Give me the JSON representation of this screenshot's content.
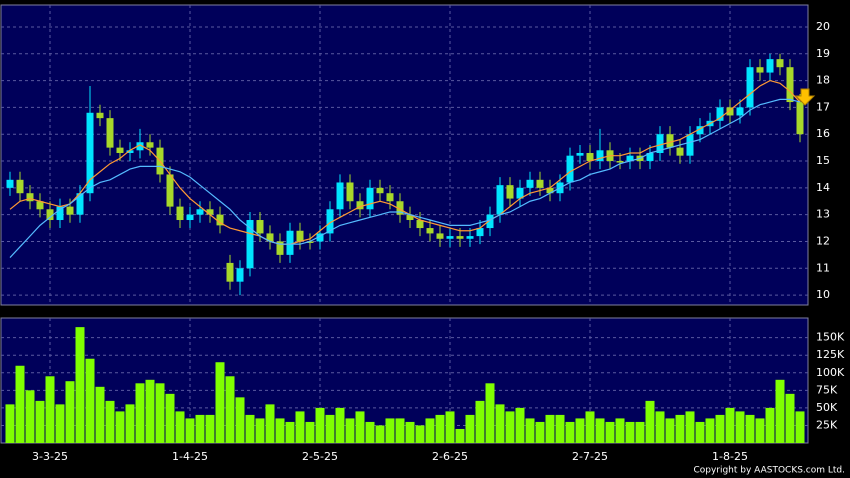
{
  "chart_data": {
    "type": "candlestick",
    "categories": [
      null,
      null,
      null,
      null,
      "3-3-25",
      null,
      null,
      null,
      null,
      null,
      null,
      null,
      null,
      null,
      null,
      null,
      null,
      null,
      "1-4-25",
      null,
      null,
      null,
      null,
      null,
      null,
      null,
      null,
      null,
      null,
      null,
      null,
      "2-5-25",
      null,
      null,
      null,
      null,
      null,
      null,
      null,
      null,
      null,
      null,
      null,
      null,
      "2-6-25",
      null,
      null,
      null,
      null,
      null,
      null,
      null,
      null,
      null,
      null,
      null,
      null,
      null,
      "2-7-25",
      null,
      null,
      null,
      null,
      null,
      null,
      null,
      null,
      null,
      null,
      null,
      null,
      null,
      "1-8-25",
      null,
      null,
      null,
      null,
      null,
      null,
      null
    ],
    "open": [
      14.0,
      14.3,
      13.8,
      13.5,
      13.2,
      12.8,
      13.3,
      13.0,
      13.8,
      16.8,
      16.6,
      15.5,
      15.3,
      15.4,
      15.7,
      15.5,
      14.5,
      13.3,
      12.8,
      13.0,
      13.2,
      13.0,
      11.2,
      10.5,
      11.0,
      12.8,
      12.3,
      12.0,
      11.5,
      12.4,
      12.0,
      12.0,
      12.3,
      13.2,
      14.2,
      13.5,
      13.2,
      14.0,
      13.8,
      13.5,
      13.0,
      12.8,
      12.5,
      12.3,
      12.1,
      12.2,
      12.1,
      12.2,
      12.5,
      13.0,
      14.1,
      13.6,
      14.0,
      14.3,
      14.0,
      13.8,
      14.2,
      15.2,
      15.3,
      15.0,
      15.4,
      15.0,
      15.0,
      15.2,
      15.0,
      15.3,
      16.0,
      15.5,
      15.2,
      16.0,
      16.3,
      16.5,
      17.0,
      16.7,
      17.0,
      18.5,
      18.3,
      18.8,
      18.5,
      17.2
    ],
    "high": [
      14.6,
      14.6,
      14.1,
      13.8,
      13.5,
      13.6,
      13.6,
      14.1,
      17.8,
      17.1,
      16.9,
      15.8,
      15.7,
      16.2,
      16.0,
      15.8,
      14.8,
      13.6,
      13.3,
      13.5,
      13.5,
      13.3,
      11.5,
      11.3,
      13.1,
      13.1,
      12.6,
      12.3,
      12.7,
      12.7,
      12.3,
      12.6,
      13.5,
      14.5,
      14.5,
      13.8,
      14.3,
      14.3,
      14.1,
      13.8,
      13.3,
      13.1,
      12.8,
      12.6,
      12.5,
      12.5,
      12.5,
      12.8,
      13.3,
      14.4,
      14.4,
      14.3,
      14.6,
      14.6,
      14.3,
      14.5,
      15.5,
      15.6,
      15.6,
      16.2,
      15.7,
      15.3,
      15.5,
      15.5,
      15.6,
      16.3,
      16.3,
      15.8,
      16.3,
      16.6,
      16.8,
      17.3,
      17.3,
      17.3,
      18.8,
      18.8,
      19.0,
      19.0,
      18.8,
      17.5
    ],
    "low": [
      13.7,
      13.5,
      13.2,
      12.9,
      12.5,
      12.5,
      12.7,
      12.7,
      13.5,
      16.3,
      15.2,
      15.0,
      15.0,
      15.1,
      15.2,
      14.2,
      13.0,
      12.5,
      12.5,
      12.7,
      12.7,
      12.3,
      10.2,
      10.0,
      10.7,
      12.0,
      11.7,
      11.2,
      11.2,
      11.7,
      11.7,
      11.7,
      12.0,
      12.9,
      13.2,
      12.9,
      12.9,
      13.5,
      13.2,
      12.7,
      12.5,
      12.2,
      12.0,
      11.8,
      11.8,
      11.8,
      11.8,
      11.9,
      12.2,
      12.7,
      13.3,
      13.3,
      13.7,
      13.7,
      13.5,
      13.5,
      13.9,
      14.9,
      14.7,
      14.7,
      14.7,
      14.7,
      14.7,
      14.7,
      14.7,
      15.0,
      15.2,
      14.9,
      14.9,
      15.7,
      16.0,
      16.2,
      16.4,
      16.4,
      16.7,
      18.0,
      18.0,
      18.2,
      16.9,
      15.7
    ],
    "close": [
      14.3,
      13.8,
      13.5,
      13.2,
      12.8,
      13.3,
      13.0,
      13.8,
      16.8,
      16.6,
      15.5,
      15.3,
      15.4,
      15.7,
      15.5,
      14.5,
      13.3,
      12.8,
      13.0,
      13.2,
      13.0,
      12.6,
      10.5,
      11.0,
      12.8,
      12.3,
      12.0,
      11.5,
      12.4,
      12.0,
      12.0,
      12.3,
      13.2,
      14.2,
      13.5,
      13.2,
      14.0,
      13.8,
      13.5,
      13.0,
      12.8,
      12.5,
      12.3,
      12.1,
      12.2,
      12.1,
      12.2,
      12.5,
      13.0,
      14.1,
      13.6,
      14.0,
      14.3,
      14.0,
      13.8,
      14.2,
      15.2,
      15.3,
      15.0,
      15.4,
      15.0,
      15.0,
      15.2,
      15.0,
      15.3,
      16.0,
      15.5,
      15.2,
      16.0,
      16.3,
      16.5,
      17.0,
      16.7,
      17.0,
      18.5,
      18.3,
      18.8,
      18.5,
      17.2,
      16.0
    ],
    "volume": [
      55000,
      110000,
      75000,
      60000,
      95000,
      55000,
      88000,
      165000,
      120000,
      80000,
      60000,
      45000,
      55000,
      85000,
      90000,
      85000,
      70000,
      45000,
      35000,
      40000,
      40000,
      115000,
      95000,
      65000,
      40000,
      35000,
      55000,
      35000,
      30000,
      45000,
      30000,
      50000,
      40000,
      50000,
      35000,
      45000,
      30000,
      25000,
      35000,
      35000,
      30000,
      25000,
      35000,
      40000,
      45000,
      20000,
      40000,
      60000,
      85000,
      55000,
      45000,
      50000,
      35000,
      30000,
      40000,
      40000,
      30000,
      35000,
      45000,
      35000,
      30000,
      35000,
      30000,
      30000,
      60000,
      45000,
      35000,
      40000,
      45000,
      30000,
      35000,
      40000,
      50000,
      45000,
      40000,
      35000,
      50000,
      90000,
      70000,
      45000
    ],
    "up_color": "#00e5ff",
    "down_color": "#a8d82a",
    "volume_color": "#80ff00",
    "ma": [
      {
        "color": "#ff9933",
        "values": [
          13.2,
          13.5,
          13.6,
          13.5,
          13.4,
          13.3,
          13.4,
          13.8,
          14.3,
          14.6,
          14.9,
          15.1,
          15.4,
          15.6,
          15.4,
          15.0,
          14.5,
          14.0,
          13.6,
          13.3,
          13.0,
          12.7,
          12.5,
          12.4,
          12.3,
          12.2,
          12.0,
          11.9,
          11.9,
          12.0,
          12.1,
          12.4,
          12.7,
          12.9,
          13.1,
          13.3,
          13.4,
          13.5,
          13.4,
          13.2,
          13.0,
          12.8,
          12.7,
          12.6,
          12.5,
          12.4,
          12.4,
          12.5,
          12.8,
          13.0,
          13.3,
          13.6,
          13.8,
          13.9,
          14.0,
          14.3,
          14.6,
          14.8,
          15.0,
          15.1,
          15.2,
          15.2,
          15.3,
          15.3,
          15.5,
          15.6,
          15.7,
          15.8,
          16.0,
          16.2,
          16.4,
          16.6,
          16.9,
          17.2,
          17.5,
          17.8,
          18.0,
          17.9,
          17.6,
          17.2
        ]
      },
      {
        "color": "#55bbff",
        "values": [
          11.4,
          11.8,
          12.2,
          12.6,
          12.9,
          13.2,
          13.4,
          13.7,
          14.0,
          14.2,
          14.3,
          14.5,
          14.7,
          14.8,
          14.8,
          14.8,
          14.7,
          14.6,
          14.4,
          14.1,
          13.8,
          13.5,
          13.2,
          12.8,
          12.5,
          12.2,
          12.0,
          11.9,
          11.9,
          11.9,
          12.0,
          12.2,
          12.4,
          12.6,
          12.7,
          12.8,
          12.9,
          13.0,
          13.1,
          13.1,
          13.0,
          12.9,
          12.8,
          12.7,
          12.6,
          12.6,
          12.6,
          12.7,
          12.8,
          13.0,
          13.1,
          13.3,
          13.5,
          13.6,
          13.8,
          14.0,
          14.2,
          14.3,
          14.5,
          14.6,
          14.7,
          14.9,
          15.0,
          15.1,
          15.3,
          15.4,
          15.5,
          15.6,
          15.7,
          15.8,
          16.0,
          16.2,
          16.4,
          16.6,
          16.9,
          17.1,
          17.2,
          17.3,
          17.3,
          17.2
        ]
      }
    ],
    "ylim": [
      9.63,
      20.82
    ],
    "yticks": [
      10,
      11,
      12,
      13,
      14,
      15,
      16,
      17,
      18,
      19,
      20
    ],
    "volume_ylim": [
      0,
      178000
    ],
    "volume_yticks": [
      {
        "value": 25000,
        "label": "25K"
      },
      {
        "value": 50000,
        "label": "50K"
      },
      {
        "value": 75000,
        "label": "75K"
      },
      {
        "value": 100000,
        "label": "100K"
      },
      {
        "value": 125000,
        "label": "125K"
      },
      {
        "value": 150000,
        "label": "150K"
      }
    ],
    "grid": true
  },
  "footer": {
    "copyright": "Copyright by AASTOCKS.com Ltd."
  }
}
